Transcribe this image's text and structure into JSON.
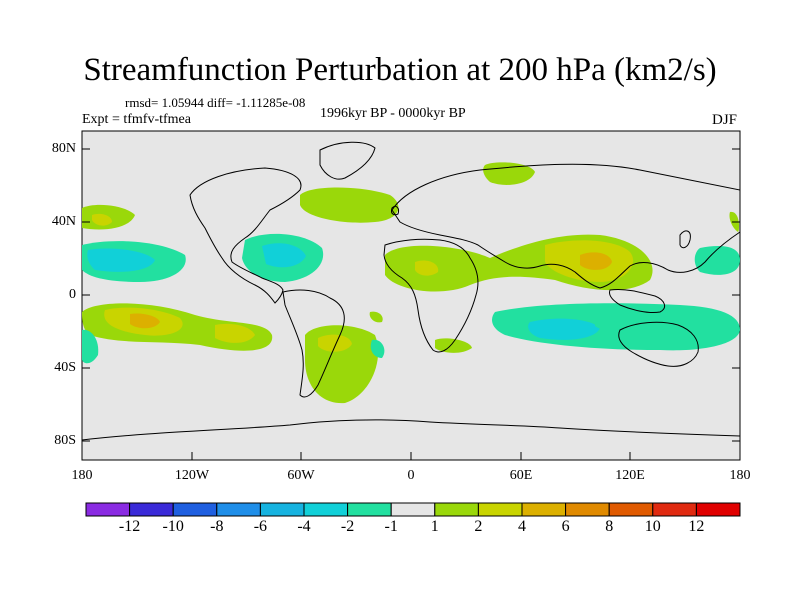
{
  "title": "Streamfunction Perturbation at 200 hPa (km2/s)",
  "stats": {
    "rmsd_text": "rmsd= 1.05944 diff= -1.11285e-08"
  },
  "left_label": "Expt = tfmfv-tfmea",
  "center_label": "1996kyr BP - 0000kyr BP",
  "right_label": "DJF",
  "lat_ticks": [
    "80N",
    "40N",
    "0",
    "40S",
    "80S"
  ],
  "lon_ticks": [
    "180",
    "120W",
    "60W",
    "0",
    "60E",
    "120E",
    "180"
  ],
  "colorbar": {
    "labels": [
      "-12",
      "-10",
      "-8",
      "-6",
      "-4",
      "-2",
      "-1",
      "1",
      "2",
      "4",
      "6",
      "8",
      "10",
      "12"
    ],
    "colors": [
      "#8a2be2",
      "#3a2ad8",
      "#1f5fe0",
      "#1f8ee8",
      "#16b3e0",
      "#11d0d8",
      "#22e0a0",
      "#e6e6e6",
      "#9ad80a",
      "#c9d400",
      "#dcb000",
      "#e08a00",
      "#e05a00",
      "#e02a10",
      "#e00000"
    ]
  },
  "colors": {
    "background": "#e6e6e6",
    "pos1": "#9ad80a",
    "pos2": "#c9d400",
    "pos3": "#dcb000",
    "neg1": "#22e0a0",
    "neg2": "#11d0d8"
  }
}
